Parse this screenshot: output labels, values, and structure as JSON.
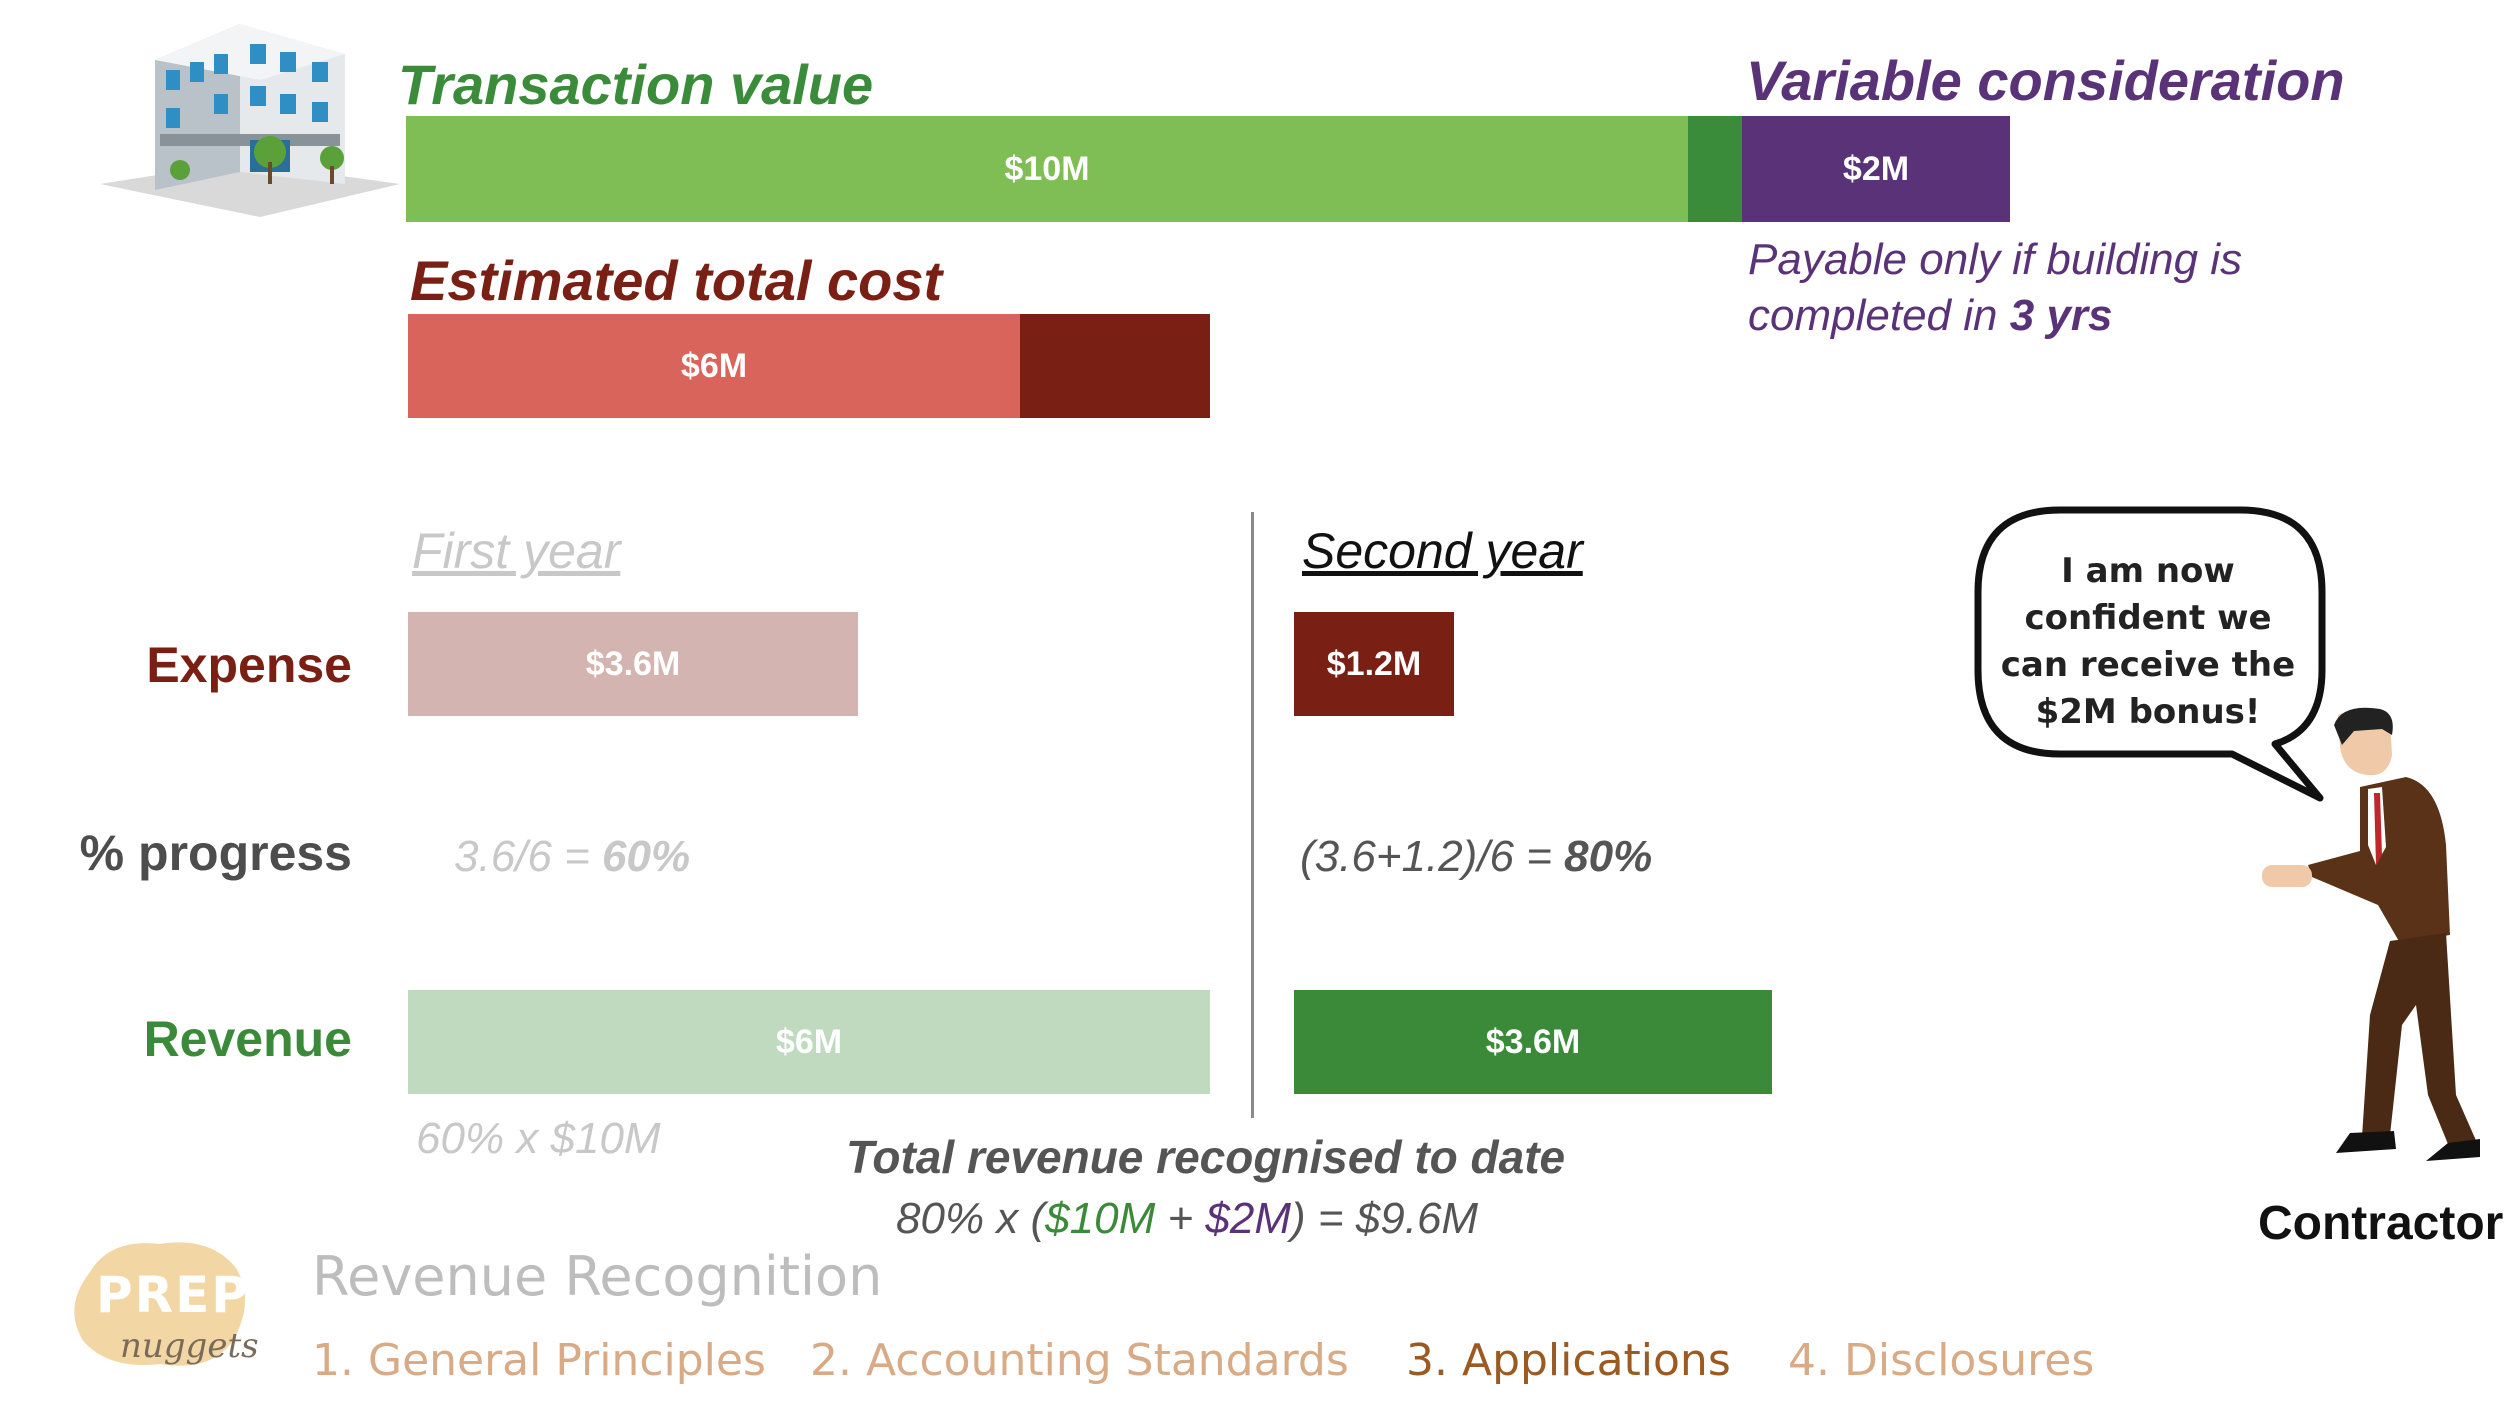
{
  "colors": {
    "transaction": "#7fbd55",
    "transaction_dark": "#3b8c3a",
    "variable": "#5a3278",
    "cost": "#d9645c",
    "cost_dark": "#7a1f14",
    "expense_y1": "#d4b4b0",
    "revenue_y1": "#c0dac0",
    "revenue_y2": "#3a8a3a",
    "nav_light": "#d8ab86",
    "nav_active": "#9b5a22"
  },
  "top": {
    "transaction_title": "Transaction value",
    "transaction_bar": "$10M",
    "variable_title": "Variable consideration",
    "variable_bar": "$2M",
    "variable_note_line1": "Payable only if building is",
    "variable_note_line2_prefix": "completed in ",
    "variable_note_line2_bold": "3 yrs",
    "cost_title": "Estimated total cost",
    "cost_bar": "$6M"
  },
  "rows": {
    "expense": "Expense",
    "progress": "% progress",
    "revenue": "Revenue"
  },
  "year1": {
    "heading": "First year",
    "expense_bar": "$3.6M",
    "progress_formula": "3.6/6 = ",
    "progress_value": "60%",
    "revenue_bar": "$6M",
    "revenue_formula": "60% x $10M"
  },
  "year2": {
    "heading": "Second year",
    "expense_bar": "$1.2M",
    "progress_formula": "(3.6+1.2)/6 = ",
    "progress_value": "80%",
    "revenue_bar": "$3.6M"
  },
  "total": {
    "title": "Total revenue recognised to date",
    "part1": "80% x (",
    "part2": "$10M",
    "part3": " + ",
    "part4": "$2M",
    "part5": ") = $9.6M"
  },
  "speech": {
    "line1": "I am now",
    "line2": "confident we",
    "line3": "can receive  the",
    "line4": "$2M bonus!"
  },
  "contractor_label": "Contractor",
  "brand": {
    "logo_top": "PREP",
    "logo_bottom": "nuggets",
    "course_title": "Revenue Recognition"
  },
  "nav": [
    {
      "label": "1. General Principles"
    },
    {
      "label": "2. Accounting Standards"
    },
    {
      "label": "3. Applications"
    },
    {
      "label": "4. Disclosures"
    }
  ]
}
